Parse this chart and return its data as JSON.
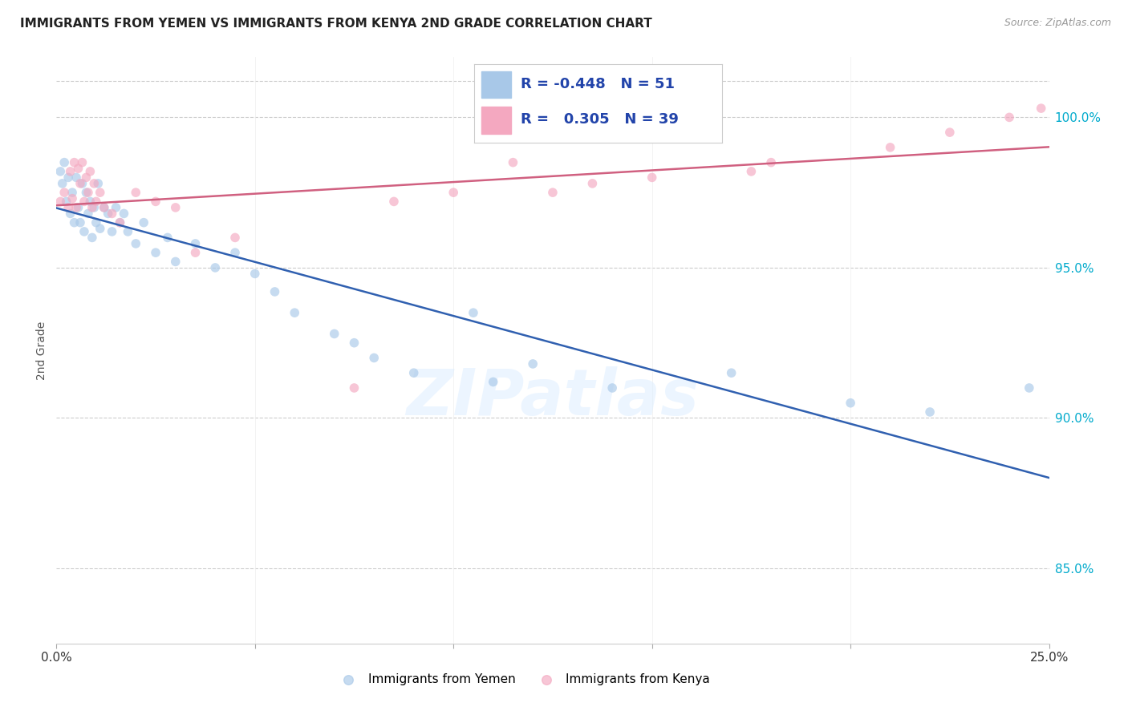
{
  "title": "IMMIGRANTS FROM YEMEN VS IMMIGRANTS FROM KENYA 2ND GRADE CORRELATION CHART",
  "source": "Source: ZipAtlas.com",
  "ylabel": "2nd Grade",
  "xlim": [
    0.0,
    25.0
  ],
  "ylim": [
    82.5,
    102.0
  ],
  "yticks": [
    85.0,
    90.0,
    95.0,
    100.0
  ],
  "ytick_labels": [
    "85.0%",
    "90.0%",
    "95.0%",
    "100.0%"
  ],
  "legend_R1": "-0.448",
  "legend_N1": "51",
  "legend_R2": "0.305",
  "legend_N2": "39",
  "color_yemen": "#a8c8e8",
  "color_kenya": "#f4a8c0",
  "line_color_yemen": "#3060b0",
  "line_color_kenya": "#d06080",
  "marker_size": 70,
  "alpha": 0.65,
  "yemen_x": [
    0.1,
    0.15,
    0.2,
    0.25,
    0.3,
    0.35,
    0.4,
    0.45,
    0.5,
    0.55,
    0.6,
    0.65,
    0.7,
    0.75,
    0.8,
    0.85,
    0.9,
    0.95,
    1.0,
    1.05,
    1.1,
    1.2,
    1.3,
    1.4,
    1.5,
    1.6,
    1.7,
    1.8,
    2.0,
    2.2,
    2.5,
    2.8,
    3.0,
    3.5,
    4.0,
    4.5,
    5.0,
    5.5,
    6.0,
    7.0,
    7.5,
    8.0,
    9.0,
    10.5,
    11.0,
    12.0,
    14.0,
    17.0,
    20.0,
    22.0,
    24.5
  ],
  "yemen_y": [
    98.2,
    97.8,
    98.5,
    97.2,
    98.0,
    96.8,
    97.5,
    96.5,
    98.0,
    97.0,
    96.5,
    97.8,
    96.2,
    97.5,
    96.8,
    97.2,
    96.0,
    97.0,
    96.5,
    97.8,
    96.3,
    97.0,
    96.8,
    96.2,
    97.0,
    96.5,
    96.8,
    96.2,
    95.8,
    96.5,
    95.5,
    96.0,
    95.2,
    95.8,
    95.0,
    95.5,
    94.8,
    94.2,
    93.5,
    92.8,
    92.5,
    92.0,
    91.5,
    93.5,
    91.2,
    91.8,
    91.0,
    91.5,
    90.5,
    90.2,
    91.0
  ],
  "kenya_x": [
    0.1,
    0.2,
    0.3,
    0.35,
    0.4,
    0.45,
    0.5,
    0.55,
    0.6,
    0.65,
    0.7,
    0.75,
    0.8,
    0.85,
    0.9,
    0.95,
    1.0,
    1.1,
    1.2,
    1.4,
    1.6,
    2.0,
    2.5,
    3.0,
    3.5,
    4.5,
    7.5,
    8.5,
    10.0,
    11.5,
    12.5,
    13.5,
    15.0,
    17.5,
    18.0,
    21.0,
    22.5,
    24.0,
    24.8
  ],
  "kenya_y": [
    97.2,
    97.5,
    97.0,
    98.2,
    97.3,
    98.5,
    97.0,
    98.3,
    97.8,
    98.5,
    97.2,
    98.0,
    97.5,
    98.2,
    97.0,
    97.8,
    97.2,
    97.5,
    97.0,
    96.8,
    96.5,
    97.5,
    97.2,
    97.0,
    95.5,
    96.0,
    91.0,
    97.2,
    97.5,
    98.5,
    97.5,
    97.8,
    98.0,
    98.2,
    98.5,
    99.0,
    99.5,
    100.0,
    100.3
  ],
  "watermark": "ZIPatlas",
  "background_color": "#ffffff",
  "grid_color": "#cccccc"
}
